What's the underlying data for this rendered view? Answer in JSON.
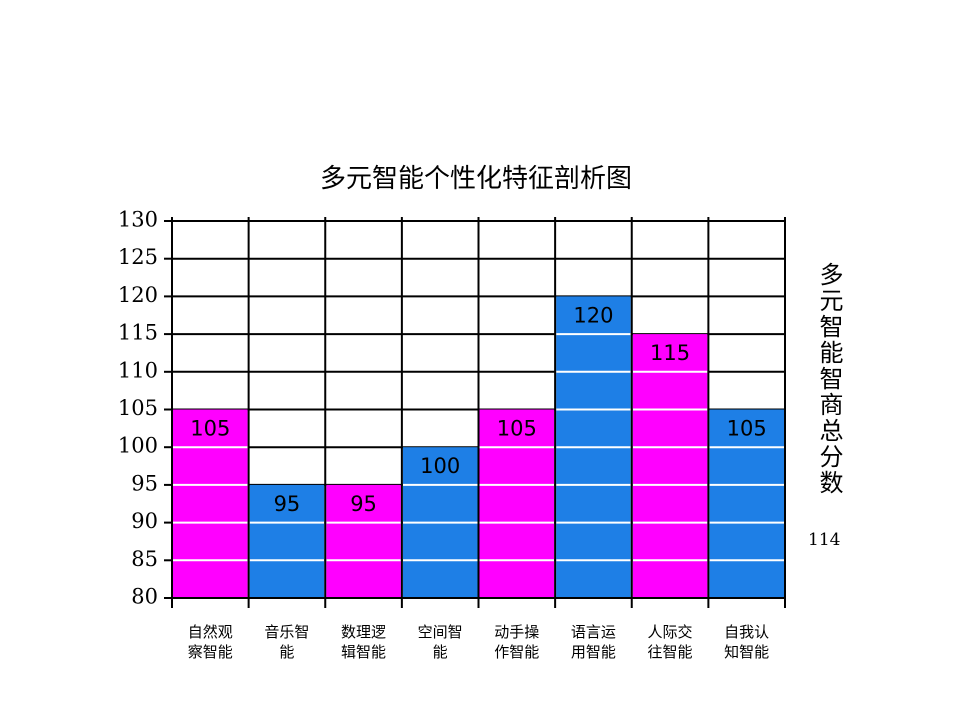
{
  "chart_data": {
    "type": "bar",
    "title": "多元智能个性化特征剖析图",
    "categories": [
      "自然观察智能",
      "音乐智能",
      "数理逻辑智能",
      "空间智能",
      "动手操作智能",
      "语言运用智能",
      "人际交往智能",
      "自我认知智能"
    ],
    "values": [
      105,
      95,
      95,
      100,
      105,
      120,
      115,
      105
    ],
    "colors": [
      "#ff00ff",
      "#1e7fe6",
      "#ff00ff",
      "#1e7fe6",
      "#ff00ff",
      "#1e7fe6",
      "#ff00ff",
      "#1e7fe6"
    ],
    "ylim": [
      80,
      130
    ],
    "yticks": [
      80,
      85,
      90,
      95,
      100,
      105,
      110,
      115,
      120,
      125,
      130
    ],
    "grid": true,
    "side_label": "多元智能智商总分数",
    "total_score": 114
  }
}
